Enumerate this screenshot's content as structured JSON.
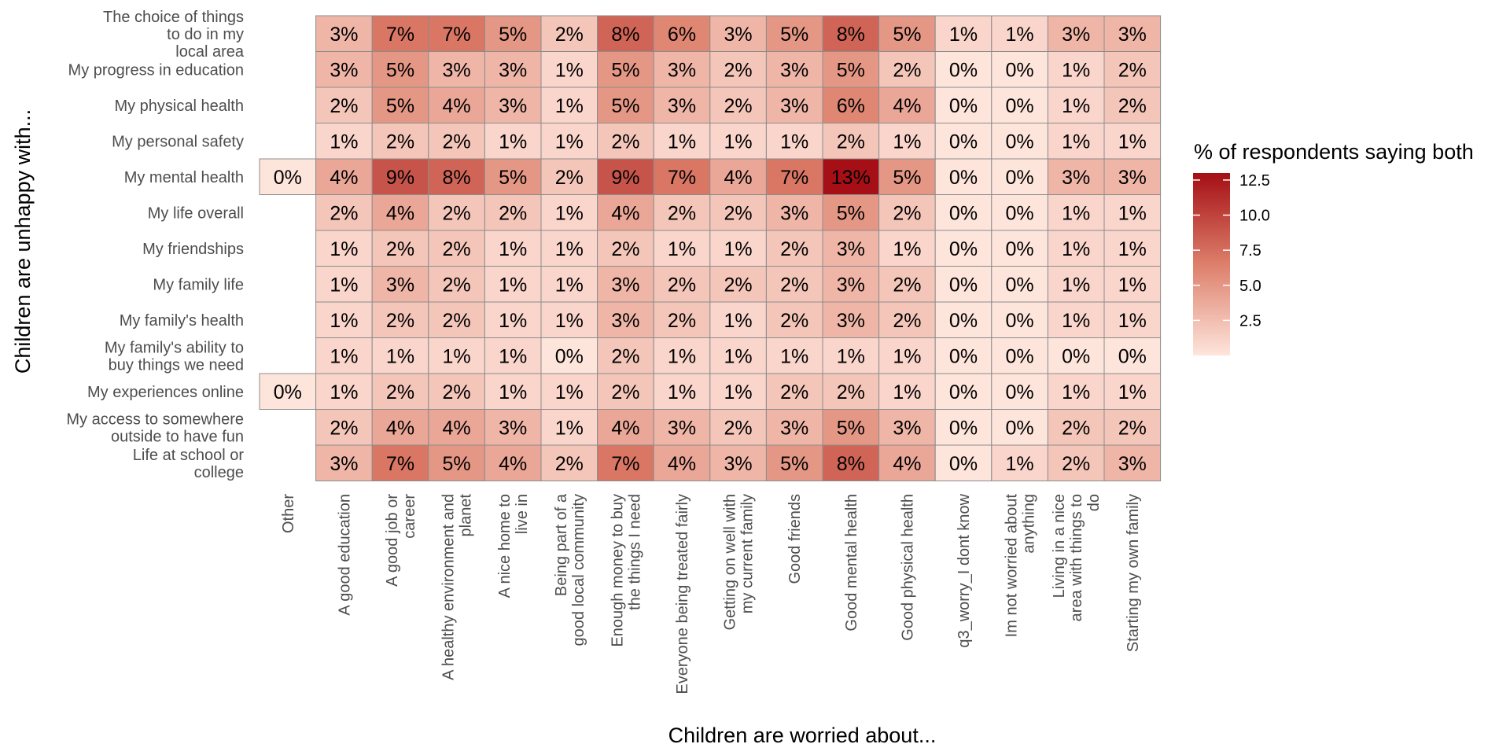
{
  "chart_data": {
    "type": "heatmap",
    "title": "",
    "xlabel": "Children are worried about...",
    "ylabel": "Children are unhappy with...",
    "columns": [
      {
        "key": "other",
        "lines": [
          "Other"
        ]
      },
      {
        "key": "education",
        "lines": [
          "A good education"
        ]
      },
      {
        "key": "job",
        "lines": [
          "A good job or",
          "career"
        ]
      },
      {
        "key": "environment",
        "lines": [
          "A healthy environment and",
          "planet"
        ]
      },
      {
        "key": "home",
        "lines": [
          "A nice home to",
          "live in"
        ]
      },
      {
        "key": "community",
        "lines": [
          "Being part of a",
          "good local community"
        ]
      },
      {
        "key": "money",
        "lines": [
          "Enough money to buy",
          "the things I need"
        ]
      },
      {
        "key": "fairly",
        "lines": [
          "Everyone being treated fairly"
        ]
      },
      {
        "key": "family_relations",
        "lines": [
          "Getting on well with",
          "my current family"
        ]
      },
      {
        "key": "friends",
        "lines": [
          "Good friends"
        ]
      },
      {
        "key": "mental",
        "lines": [
          "Good mental health"
        ]
      },
      {
        "key": "physical",
        "lines": [
          "Good physical health"
        ]
      },
      {
        "key": "dont_know",
        "lines": [
          "q3_worry_I dont know"
        ]
      },
      {
        "key": "not_worried",
        "lines": [
          "Im not worried about",
          "anything"
        ]
      },
      {
        "key": "nice_area",
        "lines": [
          "Living in a nice",
          "area with things to",
          "do"
        ]
      },
      {
        "key": "own_family",
        "lines": [
          "Starting my own family"
        ]
      }
    ],
    "rows": [
      {
        "lines": [
          "The choice of things",
          "to do in my",
          "local area"
        ],
        "values": [
          null,
          3,
          7,
          7,
          5,
          2,
          8,
          6,
          3,
          5,
          8,
          5,
          1,
          1,
          3,
          3
        ]
      },
      {
        "lines": [
          "My progress in education"
        ],
        "values": [
          null,
          3,
          5,
          3,
          3,
          1,
          5,
          3,
          2,
          3,
          5,
          2,
          0,
          0,
          1,
          2
        ]
      },
      {
        "lines": [
          "My physical health"
        ],
        "values": [
          null,
          2,
          5,
          4,
          3,
          1,
          5,
          3,
          2,
          3,
          6,
          4,
          0,
          0,
          1,
          2
        ]
      },
      {
        "lines": [
          "My personal safety"
        ],
        "values": [
          null,
          1,
          2,
          2,
          1,
          1,
          2,
          1,
          1,
          1,
          2,
          1,
          0,
          0,
          1,
          1
        ]
      },
      {
        "lines": [
          "My mental health"
        ],
        "values": [
          0,
          4,
          9,
          8,
          5,
          2,
          9,
          7,
          4,
          7,
          13,
          5,
          0,
          0,
          3,
          3
        ]
      },
      {
        "lines": [
          "My life overall"
        ],
        "values": [
          null,
          2,
          4,
          2,
          2,
          1,
          4,
          2,
          2,
          3,
          5,
          2,
          0,
          0,
          1,
          1
        ]
      },
      {
        "lines": [
          "My friendships"
        ],
        "values": [
          null,
          1,
          2,
          2,
          1,
          1,
          2,
          1,
          1,
          2,
          3,
          1,
          0,
          0,
          1,
          1
        ]
      },
      {
        "lines": [
          "My family life"
        ],
        "values": [
          null,
          1,
          3,
          2,
          1,
          1,
          3,
          2,
          2,
          2,
          3,
          2,
          0,
          0,
          1,
          1
        ]
      },
      {
        "lines": [
          "My family's health"
        ],
        "values": [
          null,
          1,
          2,
          2,
          1,
          1,
          3,
          2,
          1,
          2,
          3,
          2,
          0,
          0,
          1,
          1
        ]
      },
      {
        "lines": [
          "My family's ability to",
          "buy things we need"
        ],
        "values": [
          null,
          1,
          1,
          1,
          1,
          0,
          2,
          1,
          1,
          1,
          1,
          1,
          0,
          0,
          0,
          0
        ]
      },
      {
        "lines": [
          "My experiences online"
        ],
        "values": [
          0,
          1,
          2,
          2,
          1,
          1,
          2,
          1,
          1,
          2,
          2,
          1,
          0,
          0,
          1,
          1
        ]
      },
      {
        "lines": [
          "My access to somewhere",
          "outside to have fun"
        ],
        "values": [
          null,
          2,
          4,
          4,
          3,
          1,
          4,
          3,
          2,
          3,
          5,
          3,
          0,
          0,
          2,
          2
        ]
      },
      {
        "lines": [
          "Life at school or",
          "college"
        ],
        "values": [
          null,
          3,
          7,
          5,
          4,
          2,
          7,
          4,
          3,
          5,
          8,
          4,
          0,
          1,
          2,
          3
        ]
      }
    ],
    "value_suffix": "%",
    "color_scale": {
      "low": "#fee5dc",
      "mid": "#dd7f6b",
      "high": "#a50f15",
      "min": 0,
      "max": 13
    },
    "legend": {
      "title": "% of respondents saying both",
      "ticks": [
        2.5,
        5.0,
        7.5,
        10.0,
        12.5
      ],
      "tick_labels": [
        "2.5",
        "5.0",
        "7.5",
        "10.0",
        "12.5"
      ],
      "position": "right"
    }
  }
}
